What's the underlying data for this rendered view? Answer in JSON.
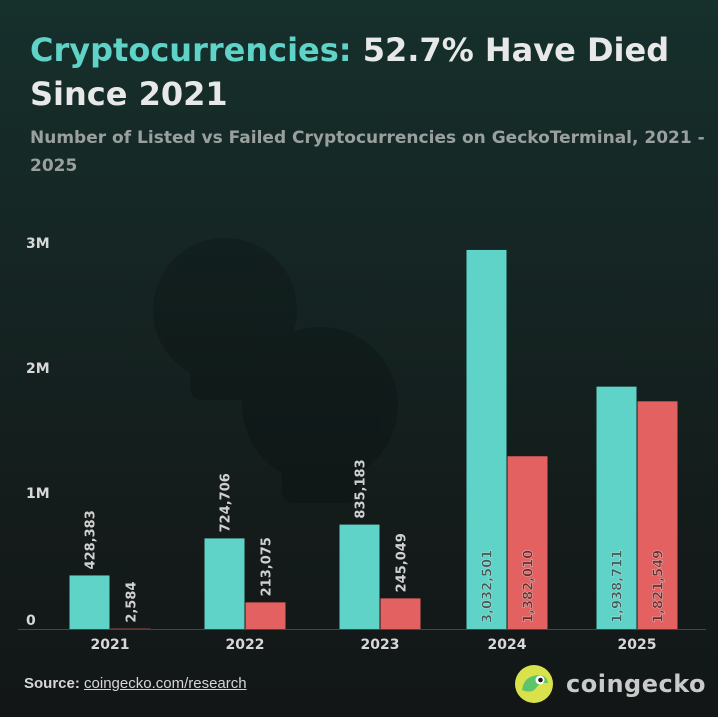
{
  "header": {
    "title_accent": "Cryptocurrencies:",
    "title_rest": " 52.7% Have Died Since 2021",
    "subtitle": "Number of Listed vs Failed Cryptocurrencies on GeckoTerminal, 2021 - 2025"
  },
  "footer": {
    "source_label": "Source:",
    "source_link": "coingecko.com/research",
    "brand": "coingecko"
  },
  "colors": {
    "listed": "#5fd3c8",
    "failed": "#e36161",
    "axis_text": "#d8d8d8",
    "bar_label": "#d0d0d0"
  },
  "chart_data": {
    "type": "bar",
    "title": "Number of Listed vs Failed Cryptocurrencies on GeckoTerminal, 2021 - 2025",
    "xlabel": "",
    "ylabel": "",
    "categories": [
      "2021",
      "2022",
      "2023",
      "2024",
      "2025"
    ],
    "series": [
      {
        "values": [
          428383,
          724706,
          835183,
          3032501,
          1938711
        ],
        "labels": [
          "428,383",
          "724,706",
          "835,183",
          "3,032,501",
          "1,938,711"
        ]
      },
      {
        "values": [
          2584,
          213075,
          245049,
          1382010,
          1821549
        ],
        "labels": [
          "2,584",
          "213,075",
          "245,049",
          "1,382,010",
          "1,821,549"
        ]
      }
    ],
    "yticks": [
      0,
      1000000,
      2000000,
      3000000
    ],
    "ytick_labels": [
      "0",
      "1M",
      "2M",
      "3M"
    ],
    "ylim": [
      0,
      3000000
    ],
    "grid": false,
    "legend": "none"
  }
}
